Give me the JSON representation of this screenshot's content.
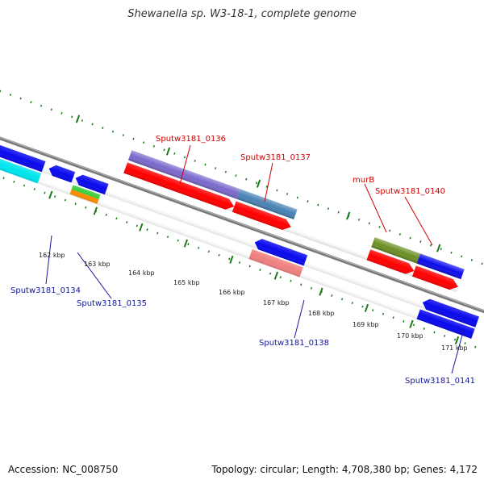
{
  "title": "Shewanella sp. W3-18-1, complete genome",
  "footer": {
    "accession": "Accession: NC_008750",
    "summary": "Topology: circular; Length: 4,708,380 bp; Genes: 4,172"
  },
  "ticks": [
    "162 kbp",
    "163 kbp",
    "164 kbp",
    "165 kbp",
    "166 kbp",
    "167 kbp",
    "168 kbp",
    "169 kbp",
    "170 kbp",
    "171 kbp"
  ],
  "genes_top": [
    "Sputw3181_0136",
    "Sputw3181_0137",
    "murB",
    "Sputw3181_0140"
  ],
  "genes_bottom": [
    "Sputw3181_0134",
    "Sputw3181_0135",
    "Sputw3181_0138",
    "Sputw3181_0141"
  ],
  "colors": {
    "backbone": "#8a8a8a",
    "ticks": "#1a7a1a",
    "forward_label": "#d00000",
    "reverse_label": "#1515a0",
    "cds_red": "#ff0000",
    "cds_blue": "#0a0aee",
    "purple": "#7b68cc",
    "steel": "#4682b4",
    "olive": "#6b8e23",
    "cyan": "#00e5ee",
    "green": "#32cd32",
    "orange": "#ff8c00",
    "pink": "#f08080"
  }
}
